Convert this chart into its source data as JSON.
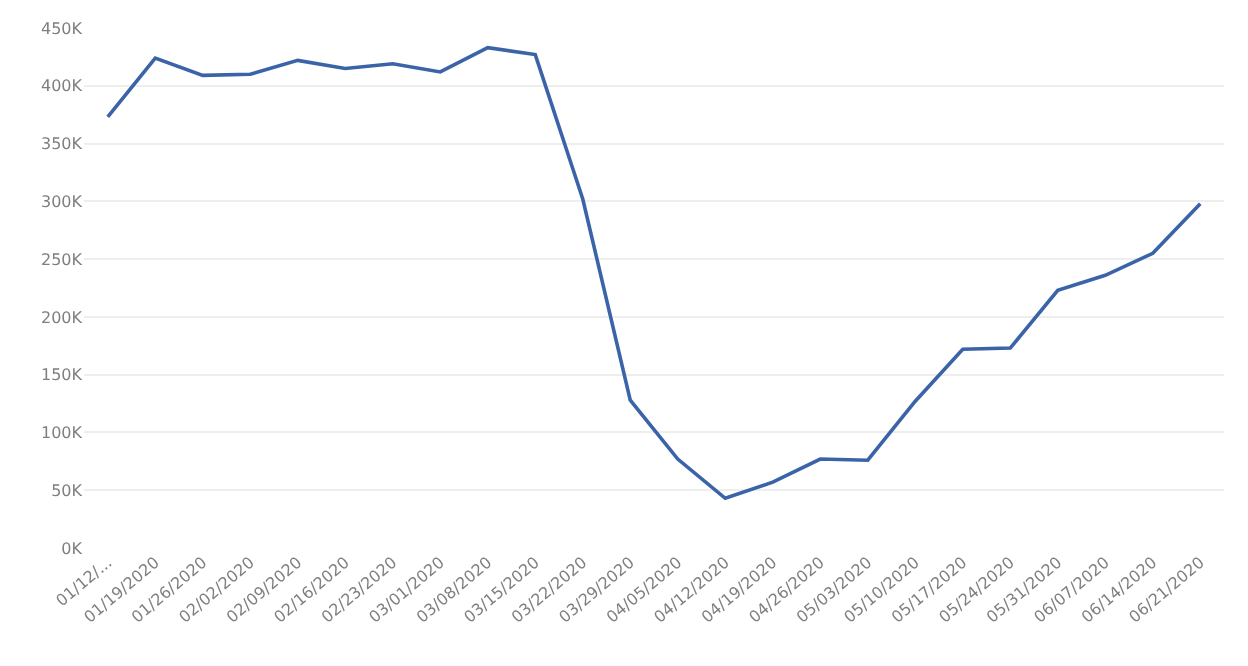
{
  "chart_data": {
    "type": "line",
    "categories": [
      "01/12/...",
      "01/19/2020",
      "01/26/2020",
      "02/02/2020",
      "02/09/2020",
      "02/16/2020",
      "02/23/2020",
      "03/01/2020",
      "03/08/2020",
      "03/15/2020",
      "03/22/2020",
      "03/29/2020",
      "04/05/2020",
      "04/12/2020",
      "04/19/2020",
      "04/26/2020",
      "05/03/2020",
      "05/10/2020",
      "05/17/2020",
      "05/24/2020",
      "05/31/2020",
      "06/07/2020",
      "06/14/2020",
      "06/21/2020"
    ],
    "series": [
      {
        "color": "#3b64a8",
        "values": [
          373000,
          424000,
          409000,
          410000,
          422000,
          415000,
          419000,
          412000,
          433000,
          427000,
          302000,
          128000,
          77000,
          43000,
          57000,
          77000,
          76000,
          127000,
          172000,
          173000,
          223000,
          236000,
          255000,
          298000
        ]
      }
    ],
    "ylim": [
      0,
      450000
    ],
    "yticks": [
      {
        "value": 0,
        "label": "0K"
      },
      {
        "value": 50000,
        "label": "50K"
      },
      {
        "value": 100000,
        "label": "100K"
      },
      {
        "value": 150000,
        "label": "150K"
      },
      {
        "value": 200000,
        "label": "200K"
      },
      {
        "value": 250000,
        "label": "250K"
      },
      {
        "value": 300000,
        "label": "300K"
      },
      {
        "value": 350000,
        "label": "350K"
      },
      {
        "value": 400000,
        "label": "400K"
      },
      {
        "value": 450000,
        "label": "450K"
      }
    ],
    "grid": "y",
    "legend": false,
    "marker": "none",
    "line_style": "solid"
  }
}
